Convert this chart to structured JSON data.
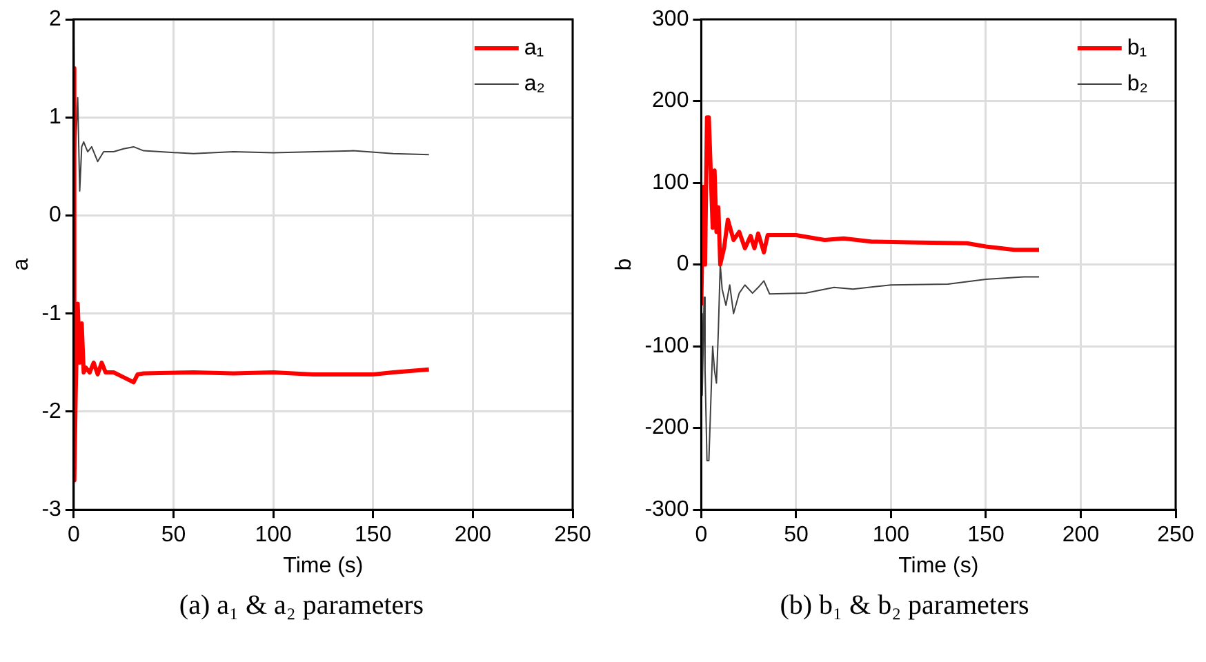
{
  "chart_data": [
    {
      "type": "line",
      "xlabel": "Time (s)",
      "ylabel": "a",
      "xlim": [
        0,
        250
      ],
      "xticks": [
        0,
        50,
        100,
        150,
        200,
        250
      ],
      "ylim": [
        -3,
        2
      ],
      "yticks": [
        -3,
        -2,
        -1,
        0,
        1,
        2
      ],
      "grid": true,
      "legend": "top right",
      "marker": "none",
      "line_style": "solid",
      "annotations": [
        "(a) a₁ & a₂ parameters"
      ],
      "x": [
        0,
        0.3,
        1,
        2,
        3,
        4,
        5,
        6,
        8,
        10,
        12,
        14,
        16,
        20,
        25,
        30,
        32,
        35,
        60,
        80,
        100,
        120,
        150,
        160,
        178
      ],
      "series": [
        {
          "name": "a₁",
          "color": "#ff0000",
          "values": [
            1.5,
            -2.7,
            -1.8,
            -0.9,
            -1.5,
            -1.1,
            -1.6,
            -1.55,
            -1.6,
            -1.5,
            -1.62,
            -1.5,
            -1.6,
            -1.6,
            -1.65,
            -1.7,
            -1.62,
            -1.61,
            -1.6,
            -1.61,
            -1.6,
            -1.62,
            -1.62,
            -1.6,
            -1.57
          ]
        },
        {
          "name": "a₂",
          "color": "#404040",
          "x": [
            0,
            0.5,
            1,
            2,
            3,
            4,
            5,
            7,
            9,
            12,
            15,
            20,
            25,
            30,
            35,
            60,
            80,
            100,
            140,
            160,
            178
          ],
          "values": [
            2,
            0.5,
            0.5,
            1.2,
            0.25,
            0.7,
            0.75,
            0.65,
            0.7,
            0.55,
            0.65,
            0.65,
            0.68,
            0.7,
            0.66,
            0.63,
            0.65,
            0.64,
            0.66,
            0.63,
            0.62
          ]
        }
      ]
    },
    {
      "type": "line",
      "xlabel": "Time (s)",
      "ylabel": "b",
      "xlim": [
        0,
        250
      ],
      "xticks": [
        0,
        50,
        100,
        150,
        200,
        250
      ],
      "ylim": [
        -300,
        300
      ],
      "yticks": [
        -300,
        -200,
        -100,
        0,
        100,
        200,
        300
      ],
      "grid": true,
      "legend": "top right",
      "marker": "none",
      "line_style": "solid",
      "annotations": [
        "(b) b₁ & b₂ parameters"
      ],
      "x": [
        0,
        1,
        2,
        3,
        4,
        6,
        7,
        8,
        9,
        10,
        12,
        14,
        17,
        20,
        23,
        26,
        28,
        30,
        33,
        35,
        50,
        65,
        75,
        90,
        110,
        140,
        150,
        165,
        178
      ],
      "series": [
        {
          "name": "b₁",
          "color": "#ff0000",
          "values": [
            -50,
            95,
            0,
            180,
            180,
            45,
            115,
            40,
            70,
            0,
            20,
            55,
            30,
            40,
            20,
            35,
            20,
            38,
            15,
            36,
            36,
            30,
            32,
            28,
            27,
            26,
            22,
            18,
            18
          ]
        },
        {
          "name": "b₂",
          "color": "#404040",
          "x": [
            0,
            0.5,
            1.5,
            2,
            3,
            4,
            5,
            6,
            7,
            8,
            9,
            10,
            11,
            13,
            15,
            17,
            20,
            23,
            27,
            30,
            33,
            36,
            55,
            70,
            80,
            100,
            130,
            150,
            170,
            178
          ],
          "values": [
            -60,
            -160,
            -40,
            -130,
            -240,
            -240,
            -170,
            -100,
            -130,
            -145,
            -80,
            0,
            -30,
            -50,
            -25,
            -60,
            -35,
            -25,
            -35,
            -28,
            -20,
            -36,
            -35,
            -28,
            -30,
            -25,
            -24,
            -18,
            -15,
            -15
          ]
        }
      ]
    }
  ]
}
